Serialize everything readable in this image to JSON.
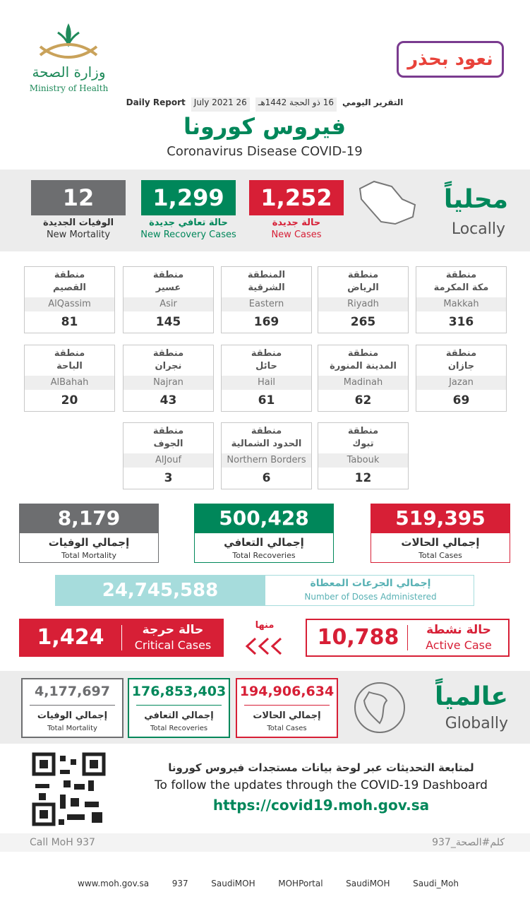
{
  "header": {
    "ministry_ar": "وزارة الصحة",
    "ministry_en": "Ministry of Health",
    "slogan": "نعود بحذر",
    "report_ar": "التقرير اليومي",
    "hijri": "16 ذو الحجة 1442هـ",
    "date": "26 July 2021",
    "report_en": "Daily Report",
    "title_ar": "فيروس كورونا",
    "title_en": "Coronavirus Disease COVID-19"
  },
  "local": {
    "title_ar": "محلياً",
    "title_en": "Locally",
    "stats": [
      {
        "value": "1,252",
        "label_ar": "حالة جديدة",
        "label_en": "New Cases",
        "color": "#d71f36"
      },
      {
        "value": "1,299",
        "label_ar": "حالة تعافي جديدة",
        "label_en": "New Recovery Cases",
        "color": "#00875a"
      },
      {
        "value": "12",
        "label_ar": "الوفيات الجديدة",
        "label_en": "New Mortality",
        "color": "#6d6e70"
      }
    ]
  },
  "regions": [
    {
      "prefix": "منطقة",
      "name_ar": "مكة المكرمة",
      "name_en": "Makkah",
      "value": "316"
    },
    {
      "prefix": "منطقة",
      "name_ar": "الرياض",
      "name_en": "Riyadh",
      "value": "265"
    },
    {
      "prefix": "المنطقة",
      "name_ar": "الشرقية",
      "name_en": "Eastern",
      "value": "169"
    },
    {
      "prefix": "منطقة",
      "name_ar": "عسير",
      "name_en": "Asir",
      "value": "145"
    },
    {
      "prefix": "منطقة",
      "name_ar": "القصيم",
      "name_en": "AlQassim",
      "value": "81"
    },
    {
      "prefix": "منطقة",
      "name_ar": "جازان",
      "name_en": "Jazan",
      "value": "69"
    },
    {
      "prefix": "منطقة",
      "name_ar": "المدينة المنورة",
      "name_en": "Madinah",
      "value": "62"
    },
    {
      "prefix": "منطقة",
      "name_ar": "حائل",
      "name_en": "Hail",
      "value": "61"
    },
    {
      "prefix": "منطقة",
      "name_ar": "نجران",
      "name_en": "Najran",
      "value": "43"
    },
    {
      "prefix": "منطقة",
      "name_ar": "الباحة",
      "name_en": "AlBahah",
      "value": "20"
    },
    {
      "prefix": "منطقة",
      "name_ar": "تبوك",
      "name_en": "Tabouk",
      "value": "12"
    },
    {
      "prefix": "منطقة",
      "name_ar": "الحدود الشمالية",
      "name_en": "Northern Borders",
      "value": "6"
    },
    {
      "prefix": "منطقة",
      "name_ar": "الجوف",
      "name_en": "AlJouf",
      "value": "3"
    }
  ],
  "totals": [
    {
      "value": "519,395",
      "label_ar": "إجمالي الحالات",
      "label_en": "Total Cases",
      "color": "#d71f36"
    },
    {
      "value": "500,428",
      "label_ar": "إجمالي التعافي",
      "label_en": "Total Recoveries",
      "color": "#00875a"
    },
    {
      "value": "8,179",
      "label_ar": "إجمالي الوفيات",
      "label_en": "Total Mortality",
      "color": "#6d6e70"
    }
  ],
  "doses": {
    "value": "24,745,588",
    "label_ar": "إجمالي الجرعات المعطاة",
    "label_en": "Number of Doses Administered"
  },
  "active": {
    "value": "10,788",
    "label_ar": "حالة نشطة",
    "label_en": "Active Case"
  },
  "of_which": "منها",
  "critical": {
    "value": "1,424",
    "label_ar": "حالة حرجة",
    "label_en": "Critical Cases"
  },
  "global": {
    "title_ar": "عالمياً",
    "title_en": "Globally",
    "stats": [
      {
        "value": "194,906,634",
        "label_ar": "إجمالي الحالات",
        "label_en": "Total Cases",
        "color": "#d71f36"
      },
      {
        "value": "176,853,403",
        "label_ar": "إجمالي التعافي",
        "label_en": "Total Recoveries",
        "color": "#00875a"
      },
      {
        "value": "4,177,697",
        "label_ar": "إجمالي الوفيات",
        "label_en": "Total Mortality",
        "color": "#6d6e70"
      }
    ]
  },
  "dashboard": {
    "text_ar": "لمتابعة التحديثات عبر لوحة بيانات مستجدات فيروس كورونا",
    "text_en": "To follow the updates through the COVID-19 Dashboard",
    "url": "https://covid19.moh.gov.sa"
  },
  "footer": {
    "call": "Call MoH 937",
    "hashtag": "كلم#الصحة_937",
    "links": [
      "www.moh.gov.sa",
      "937",
      "SaudiMOH",
      "MOHPortal",
      "SaudiMOH",
      "Saudi_Moh"
    ]
  }
}
